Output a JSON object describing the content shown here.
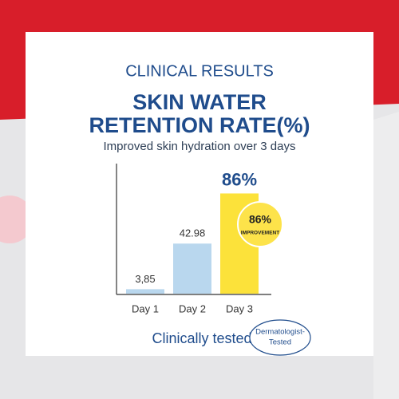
{
  "chart_data": {
    "type": "bar",
    "heading": "CLINICAL RESULTS",
    "title": [
      "SKIN WATER",
      "RETENTION RATE(%)"
    ],
    "subtitle": "Improved skin hydration over 3 days",
    "categories": [
      "Day 1",
      "Day 2",
      "Day 3"
    ],
    "values": [
      3.85,
      42.98,
      86
    ],
    "value_labels": [
      "3,85",
      "42.98",
      "86%"
    ],
    "colors": [
      "#b9d7ee",
      "#b9d7ee",
      "#fce23a"
    ],
    "ylim": [
      0,
      100
    ],
    "annotations": {
      "badge": [
        "86%",
        "IMPROVEMENT"
      ],
      "footer": "Clinically tested",
      "seal": [
        "Dermatologist-",
        "Tested"
      ]
    }
  }
}
